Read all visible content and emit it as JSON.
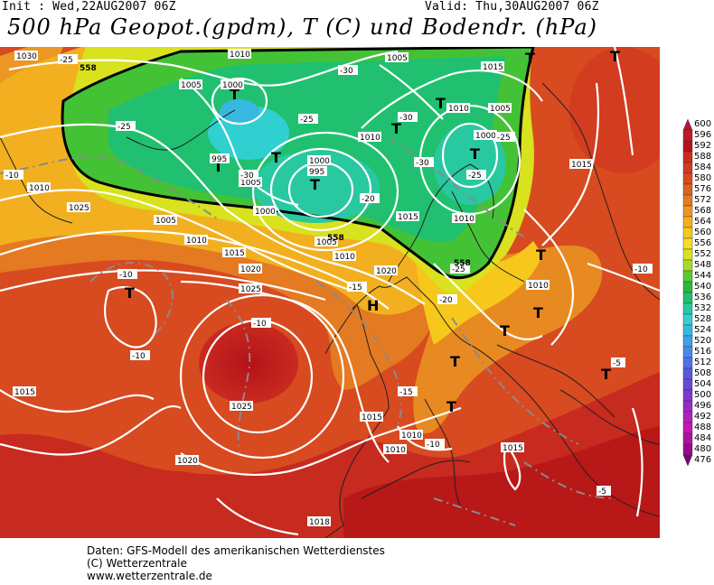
{
  "header": {
    "init": "Init : Wed,22AUG2007 06Z",
    "valid": "Valid: Thu,30AUG2007 06Z",
    "title": "500 hPa Geopot.(gpdm), T (C) und Bodendr. (hPa)"
  },
  "footer": {
    "line1": "Daten: GFS-Modell des amerikanischen Wetterdienstes",
    "line2": "(C) Wetterzentrale",
    "line3": "www.wetterzentrale.de"
  },
  "legend": {
    "levels": [
      "600",
      "596",
      "592",
      "588",
      "584",
      "580",
      "576",
      "572",
      "568",
      "564",
      "560",
      "556",
      "552",
      "548",
      "544",
      "540",
      "536",
      "532",
      "528",
      "524",
      "520",
      "516",
      "512",
      "508",
      "504",
      "500",
      "496",
      "492",
      "488",
      "484",
      "480",
      "476"
    ],
    "colors": [
      "#b0163a",
      "#c21a24",
      "#b5121a",
      "#cc2a1e",
      "#d4381f",
      "#d84a20",
      "#dd6220",
      "#e47a22",
      "#ec9624",
      "#f2b020",
      "#f6c81c",
      "#f4dc28",
      "#d8e21e",
      "#a8d82a",
      "#5cc832",
      "#2cb83a",
      "#20c070",
      "#28c8a0",
      "#30d0d0",
      "#38b8e0",
      "#40a0e8",
      "#4a88ec",
      "#5070e8",
      "#5a58e0",
      "#6a48d8",
      "#8038d0",
      "#9a28c8",
      "#b020c0",
      "#c418b0",
      "#b010a0",
      "#9a0890",
      "#700870"
    ]
  },
  "map": {
    "isobar_labels": [
      "1030",
      "1010",
      "1005",
      "1015",
      "1000",
      "1005",
      "1010",
      "1005",
      "1010",
      "1000",
      "995",
      "1005",
      "1000",
      "1010",
      "1005",
      "1010",
      "1015",
      "1020",
      "1025",
      "1020",
      "1015",
      "1010",
      "1015",
      "1025",
      "1020",
      "1015",
      "1010",
      "1015",
      "1015",
      "1010",
      "1015",
      "1018",
      "1015",
      "1010",
      "1005",
      "1010",
      "1015"
    ],
    "temp_labels": [
      "-25",
      "-30",
      "-25",
      "-30",
      "-25",
      "-30",
      "-20",
      "-25",
      "-10",
      "-15",
      "-20",
      "-10",
      "-10",
      "-15",
      "-10",
      "-10",
      "-5",
      "-5",
      "-25",
      "-10",
      "-15",
      "-5"
    ],
    "height_labels": [
      "558",
      "995",
      "558",
      "558",
      "558"
    ],
    "pressure_centers": [
      "T",
      "T",
      "T",
      "T",
      "T",
      "T",
      "T",
      "T",
      "T",
      "T",
      "T",
      "T",
      "T",
      "T",
      "H"
    ]
  }
}
